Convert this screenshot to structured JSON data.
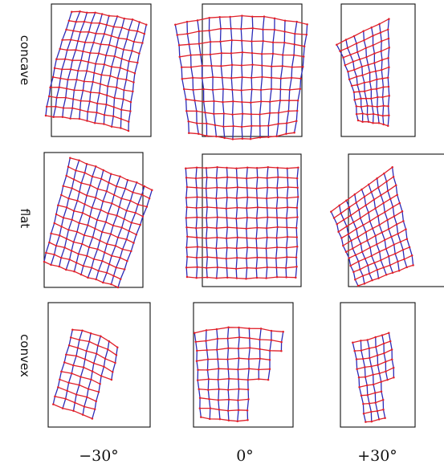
{
  "row_labels": [
    "concave",
    "flat",
    "convex"
  ],
  "column_labels": [
    "−30°",
    "0°",
    "+30°"
  ],
  "colors": {
    "horizontal_lines": "#e0202a",
    "vertical_lines": "#2a2ab8",
    "frame": "#111111"
  }
}
